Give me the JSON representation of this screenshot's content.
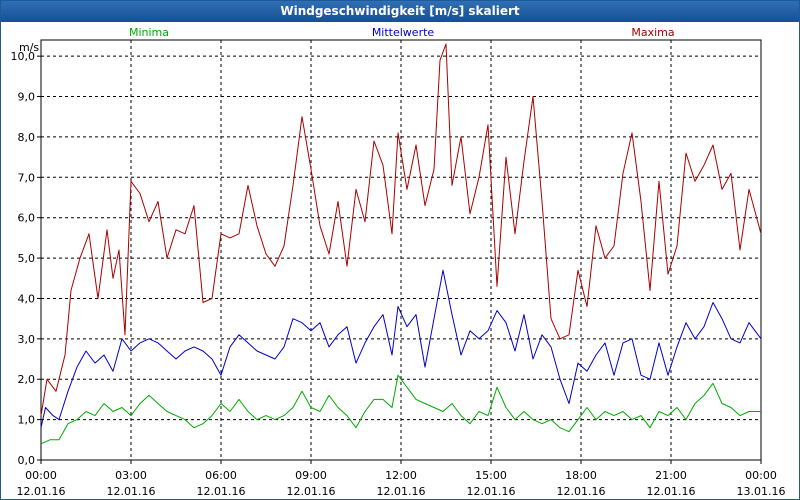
{
  "window": {
    "title": "Windgeschwindigkeit [m/s] skaliert"
  },
  "chart_data": {
    "type": "line",
    "title": "Windgeschwindigkeit [m/s] skaliert",
    "ylabel": "m/s",
    "xlabel": "",
    "ylim": [
      0,
      10.4
    ],
    "yticks": [
      "0,0",
      "1,0",
      "2,0",
      "3,0",
      "4,0",
      "5,0",
      "6,0",
      "7,0",
      "8,0",
      "9,0",
      "10,0"
    ],
    "xticks": [
      {
        "time": "00:00",
        "date": "12.01.16"
      },
      {
        "time": "03:00",
        "date": "12.01.16"
      },
      {
        "time": "06:00",
        "date": "12.01.16"
      },
      {
        "time": "09:00",
        "date": "12.01.16"
      },
      {
        "time": "12:00",
        "date": "12.01.16"
      },
      {
        "time": "15:00",
        "date": "12.01.16"
      },
      {
        "time": "18:00",
        "date": "12.01.16"
      },
      {
        "time": "21:00",
        "date": "12.01.16"
      },
      {
        "time": "00:00",
        "date": "13.01.16"
      }
    ],
    "x_hours": [
      0,
      24
    ],
    "grid": true,
    "legend_position": "top",
    "series": [
      {
        "name": "Minima",
        "color": "#00aa00",
        "points": [
          [
            0,
            0.4
          ],
          [
            0.3,
            0.5
          ],
          [
            0.6,
            0.5
          ],
          [
            0.9,
            0.9
          ],
          [
            1.2,
            1.0
          ],
          [
            1.5,
            1.2
          ],
          [
            1.8,
            1.1
          ],
          [
            2.1,
            1.4
          ],
          [
            2.4,
            1.2
          ],
          [
            2.7,
            1.3
          ],
          [
            3.0,
            1.1
          ],
          [
            3.3,
            1.4
          ],
          [
            3.6,
            1.6
          ],
          [
            3.9,
            1.4
          ],
          [
            4.2,
            1.2
          ],
          [
            4.5,
            1.1
          ],
          [
            4.8,
            1.0
          ],
          [
            5.1,
            0.8
          ],
          [
            5.4,
            0.9
          ],
          [
            5.7,
            1.1
          ],
          [
            6.0,
            1.4
          ],
          [
            6.3,
            1.2
          ],
          [
            6.6,
            1.5
          ],
          [
            6.9,
            1.2
          ],
          [
            7.2,
            1.0
          ],
          [
            7.5,
            1.1
          ],
          [
            7.8,
            1.0
          ],
          [
            8.1,
            1.1
          ],
          [
            8.4,
            1.3
          ],
          [
            8.7,
            1.7
          ],
          [
            9.0,
            1.3
          ],
          [
            9.3,
            1.2
          ],
          [
            9.6,
            1.6
          ],
          [
            9.9,
            1.3
          ],
          [
            10.2,
            1.1
          ],
          [
            10.5,
            0.8
          ],
          [
            10.8,
            1.2
          ],
          [
            11.1,
            1.5
          ],
          [
            11.4,
            1.5
          ],
          [
            11.7,
            1.3
          ],
          [
            11.9,
            2.1
          ],
          [
            12.2,
            1.8
          ],
          [
            12.5,
            1.5
          ],
          [
            12.8,
            1.4
          ],
          [
            13.1,
            1.3
          ],
          [
            13.4,
            1.2
          ],
          [
            13.7,
            1.4
          ],
          [
            14.0,
            1.1
          ],
          [
            14.3,
            0.9
          ],
          [
            14.6,
            1.2
          ],
          [
            14.9,
            1.1
          ],
          [
            15.2,
            1.8
          ],
          [
            15.5,
            1.3
          ],
          [
            15.8,
            1.0
          ],
          [
            16.1,
            1.2
          ],
          [
            16.4,
            1.0
          ],
          [
            16.7,
            0.9
          ],
          [
            17.0,
            1.0
          ],
          [
            17.3,
            0.8
          ],
          [
            17.6,
            0.7
          ],
          [
            17.9,
            1.0
          ],
          [
            18.2,
            1.3
          ],
          [
            18.5,
            1.0
          ],
          [
            18.8,
            1.2
          ],
          [
            19.1,
            1.1
          ],
          [
            19.4,
            1.2
          ],
          [
            19.7,
            1.0
          ],
          [
            20.0,
            1.1
          ],
          [
            20.3,
            0.8
          ],
          [
            20.6,
            1.2
          ],
          [
            20.9,
            1.1
          ],
          [
            21.2,
            1.3
          ],
          [
            21.5,
            1.0
          ],
          [
            21.8,
            1.4
          ],
          [
            22.1,
            1.6
          ],
          [
            22.4,
            1.9
          ],
          [
            22.7,
            1.4
          ],
          [
            23.0,
            1.3
          ],
          [
            23.3,
            1.1
          ],
          [
            23.6,
            1.2
          ],
          [
            24.0,
            1.2
          ]
        ]
      },
      {
        "name": "Mittelwerte",
        "color": "#0000cc",
        "points": [
          [
            0,
            0.8
          ],
          [
            0.15,
            1.3
          ],
          [
            0.4,
            1.1
          ],
          [
            0.6,
            1.0
          ],
          [
            0.9,
            1.7
          ],
          [
            1.2,
            2.3
          ],
          [
            1.5,
            2.7
          ],
          [
            1.8,
            2.4
          ],
          [
            2.1,
            2.6
          ],
          [
            2.4,
            2.2
          ],
          [
            2.7,
            3.0
          ],
          [
            3.0,
            2.7
          ],
          [
            3.3,
            2.9
          ],
          [
            3.6,
            3.0
          ],
          [
            3.9,
            2.9
          ],
          [
            4.2,
            2.7
          ],
          [
            4.5,
            2.5
          ],
          [
            4.8,
            2.7
          ],
          [
            5.1,
            2.8
          ],
          [
            5.4,
            2.7
          ],
          [
            5.7,
            2.5
          ],
          [
            6.0,
            2.1
          ],
          [
            6.3,
            2.8
          ],
          [
            6.6,
            3.1
          ],
          [
            6.9,
            2.9
          ],
          [
            7.2,
            2.7
          ],
          [
            7.5,
            2.6
          ],
          [
            7.8,
            2.5
          ],
          [
            8.1,
            2.8
          ],
          [
            8.4,
            3.5
          ],
          [
            8.7,
            3.4
          ],
          [
            9.0,
            3.2
          ],
          [
            9.3,
            3.4
          ],
          [
            9.6,
            2.8
          ],
          [
            9.9,
            3.1
          ],
          [
            10.2,
            3.3
          ],
          [
            10.5,
            2.4
          ],
          [
            10.8,
            2.9
          ],
          [
            11.1,
            3.3
          ],
          [
            11.4,
            3.6
          ],
          [
            11.7,
            2.6
          ],
          [
            11.9,
            3.8
          ],
          [
            12.2,
            3.3
          ],
          [
            12.5,
            3.6
          ],
          [
            12.8,
            2.3
          ],
          [
            13.1,
            3.5
          ],
          [
            13.4,
            4.7
          ],
          [
            13.7,
            3.6
          ],
          [
            14.0,
            2.6
          ],
          [
            14.3,
            3.2
          ],
          [
            14.6,
            3.0
          ],
          [
            14.9,
            3.2
          ],
          [
            15.2,
            3.7
          ],
          [
            15.5,
            3.4
          ],
          [
            15.8,
            2.7
          ],
          [
            16.1,
            3.6
          ],
          [
            16.4,
            2.5
          ],
          [
            16.7,
            3.1
          ],
          [
            17.0,
            2.8
          ],
          [
            17.3,
            2.0
          ],
          [
            17.6,
            1.4
          ],
          [
            17.9,
            2.4
          ],
          [
            18.2,
            2.2
          ],
          [
            18.5,
            2.6
          ],
          [
            18.8,
            2.9
          ],
          [
            19.1,
            2.1
          ],
          [
            19.4,
            2.9
          ],
          [
            19.7,
            3.0
          ],
          [
            20.0,
            2.1
          ],
          [
            20.3,
            2.0
          ],
          [
            20.6,
            2.9
          ],
          [
            20.9,
            2.1
          ],
          [
            21.2,
            2.8
          ],
          [
            21.5,
            3.4
          ],
          [
            21.8,
            3.0
          ],
          [
            22.1,
            3.3
          ],
          [
            22.4,
            3.9
          ],
          [
            22.7,
            3.5
          ],
          [
            23.0,
            3.0
          ],
          [
            23.3,
            2.9
          ],
          [
            23.6,
            3.4
          ],
          [
            24.0,
            3.0
          ]
        ]
      },
      {
        "name": "Maxima",
        "color": "#aa0000",
        "points": [
          [
            0,
            1.1
          ],
          [
            0.2,
            2.0
          ],
          [
            0.5,
            1.7
          ],
          [
            0.8,
            2.6
          ],
          [
            1.0,
            4.2
          ],
          [
            1.3,
            5.0
          ],
          [
            1.6,
            5.6
          ],
          [
            1.9,
            4.0
          ],
          [
            2.2,
            5.7
          ],
          [
            2.4,
            4.5
          ],
          [
            2.6,
            5.2
          ],
          [
            2.8,
            3.1
          ],
          [
            3.0,
            6.9
          ],
          [
            3.3,
            6.6
          ],
          [
            3.6,
            5.9
          ],
          [
            3.9,
            6.4
          ],
          [
            4.2,
            5.0
          ],
          [
            4.5,
            5.7
          ],
          [
            4.8,
            5.6
          ],
          [
            5.1,
            6.3
          ],
          [
            5.4,
            3.9
          ],
          [
            5.7,
            4.0
          ],
          [
            6.0,
            5.6
          ],
          [
            6.3,
            5.5
          ],
          [
            6.6,
            5.6
          ],
          [
            6.9,
            6.8
          ],
          [
            7.2,
            5.8
          ],
          [
            7.5,
            5.1
          ],
          [
            7.8,
            4.8
          ],
          [
            8.1,
            5.3
          ],
          [
            8.4,
            6.8
          ],
          [
            8.7,
            8.5
          ],
          [
            9.0,
            7.2
          ],
          [
            9.3,
            5.8
          ],
          [
            9.6,
            5.1
          ],
          [
            9.9,
            6.4
          ],
          [
            10.2,
            4.8
          ],
          [
            10.5,
            6.7
          ],
          [
            10.8,
            5.9
          ],
          [
            11.1,
            7.9
          ],
          [
            11.4,
            7.3
          ],
          [
            11.7,
            5.6
          ],
          [
            11.9,
            8.1
          ],
          [
            12.2,
            6.7
          ],
          [
            12.5,
            7.8
          ],
          [
            12.8,
            6.3
          ],
          [
            13.1,
            7.2
          ],
          [
            13.3,
            9.9
          ],
          [
            13.5,
            10.3
          ],
          [
            13.7,
            6.8
          ],
          [
            14.0,
            8.0
          ],
          [
            14.3,
            6.1
          ],
          [
            14.6,
            7.0
          ],
          [
            14.9,
            8.3
          ],
          [
            15.2,
            4.3
          ],
          [
            15.5,
            7.5
          ],
          [
            15.8,
            5.6
          ],
          [
            16.1,
            7.4
          ],
          [
            16.4,
            9.0
          ],
          [
            16.7,
            6.4
          ],
          [
            17.0,
            3.5
          ],
          [
            17.3,
            3.0
          ],
          [
            17.6,
            3.1
          ],
          [
            17.9,
            4.7
          ],
          [
            18.2,
            3.8
          ],
          [
            18.5,
            5.8
          ],
          [
            18.8,
            5.0
          ],
          [
            19.1,
            5.3
          ],
          [
            19.4,
            7.1
          ],
          [
            19.7,
            8.1
          ],
          [
            20.0,
            6.4
          ],
          [
            20.3,
            4.2
          ],
          [
            20.6,
            6.9
          ],
          [
            20.9,
            4.6
          ],
          [
            21.2,
            5.3
          ],
          [
            21.5,
            7.6
          ],
          [
            21.8,
            6.9
          ],
          [
            22.1,
            7.3
          ],
          [
            22.4,
            7.8
          ],
          [
            22.7,
            6.7
          ],
          [
            23.0,
            7.1
          ],
          [
            23.3,
            5.2
          ],
          [
            23.6,
            6.7
          ],
          [
            24.0,
            5.6
          ]
        ]
      }
    ]
  }
}
